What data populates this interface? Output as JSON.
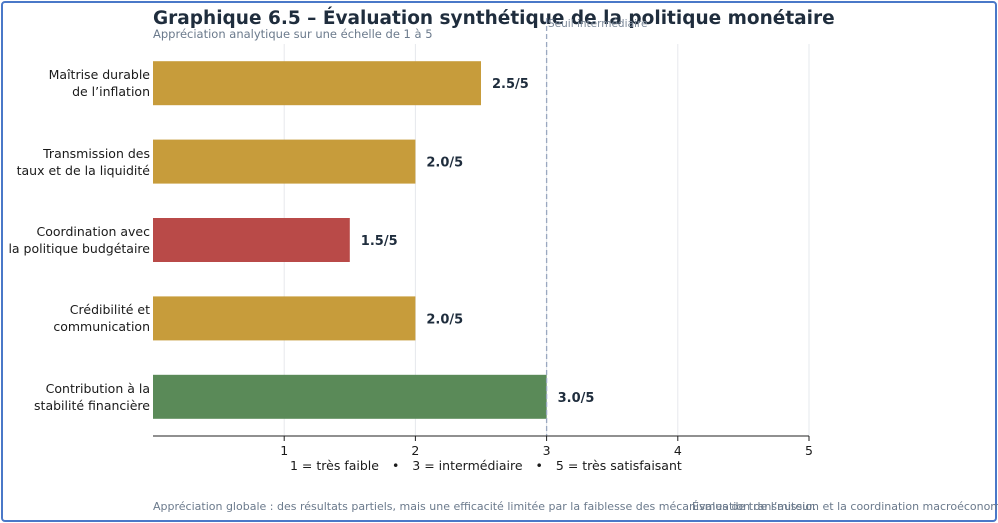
{
  "header": {
    "title": "Graphique 6.5 – Évaluation synthétique de la politique monétaire",
    "subtitle": "Appréciation analytique sur une échelle de 1 à 5",
    "reference_label": "Seuil intermédiaire"
  },
  "chart_data": {
    "type": "bar",
    "orientation": "horizontal",
    "categories": [
      [
        "Maîtrise durable",
        "de l’inflation"
      ],
      [
        "Transmission des",
        "taux et de la liquidité"
      ],
      [
        "Coordination avec",
        "la politique budgétaire"
      ],
      [
        "Crédibilité et",
        "communication"
      ],
      [
        "Contribution à la",
        "stabilité financière"
      ]
    ],
    "values": [
      2.5,
      2.0,
      1.5,
      2.0,
      3.0
    ],
    "value_labels": [
      "2.5/5",
      "2.0/5",
      "1.5/5",
      "2.0/5",
      "3.0/5"
    ],
    "bar_colors": [
      "#c79c3b",
      "#c79c3b",
      "#b94a48",
      "#c79c3b",
      "#5a8a58"
    ],
    "xlim": [
      0,
      5
    ],
    "xticks": [
      1,
      2,
      3,
      4,
      5
    ],
    "reference_line": 3,
    "grid": "vertical",
    "xlabel": "",
    "ylabel": ""
  },
  "legend": {
    "scale_1": "1 = très faible",
    "scale_3": "3 = intermédiaire",
    "scale_5": "5 = très satisfaisant",
    "separator": "•"
  },
  "footer": {
    "note": "Appréciation globale : des résultats partiels, mais une efficacité limitée par la faiblesse des mécanismes de transmission et la coordination macroéconomique.",
    "note_right": "Évaluation de l’auteur."
  },
  "colors": {
    "frame": "#4a78c8",
    "medium": "#c79c3b",
    "weak": "#b94a48",
    "good": "#5a8a58",
    "reference": "#9aa8c0"
  }
}
